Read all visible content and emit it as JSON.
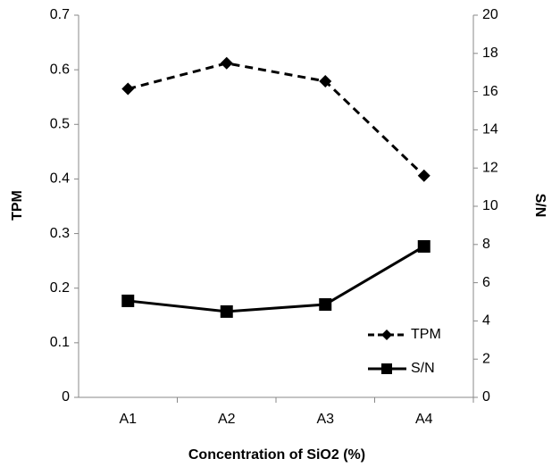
{
  "chart_data": {
    "type": "line",
    "x_label": "Concentration of SiO2 (%)",
    "y_label": "TPM",
    "y2_label": "S/N",
    "categories": [
      "A1",
      "A2",
      "A3",
      "A4"
    ],
    "series": [
      {
        "name": "TPM",
        "color": "#000000",
        "dashed": true,
        "marker": "diamond",
        "values": [
          0.565,
          0.612,
          0.579,
          0.406
        ]
      },
      {
        "name": "S/N",
        "color": "#000000",
        "dashed": false,
        "marker": "square",
        "axis": "y2",
        "values": [
          5.05,
          4.49,
          4.86,
          7.9
        ]
      }
    ],
    "ylim": [
      0,
      0.7
    ],
    "yticks": [
      0,
      0.1,
      0.2,
      0.3,
      0.4,
      0.5,
      0.6,
      0.7
    ],
    "y2lim": [
      0,
      20
    ],
    "y2ticks": [
      0,
      2,
      4,
      6,
      8,
      10,
      12,
      14,
      16,
      18,
      20
    ],
    "grid": false,
    "legend": "lower right"
  }
}
